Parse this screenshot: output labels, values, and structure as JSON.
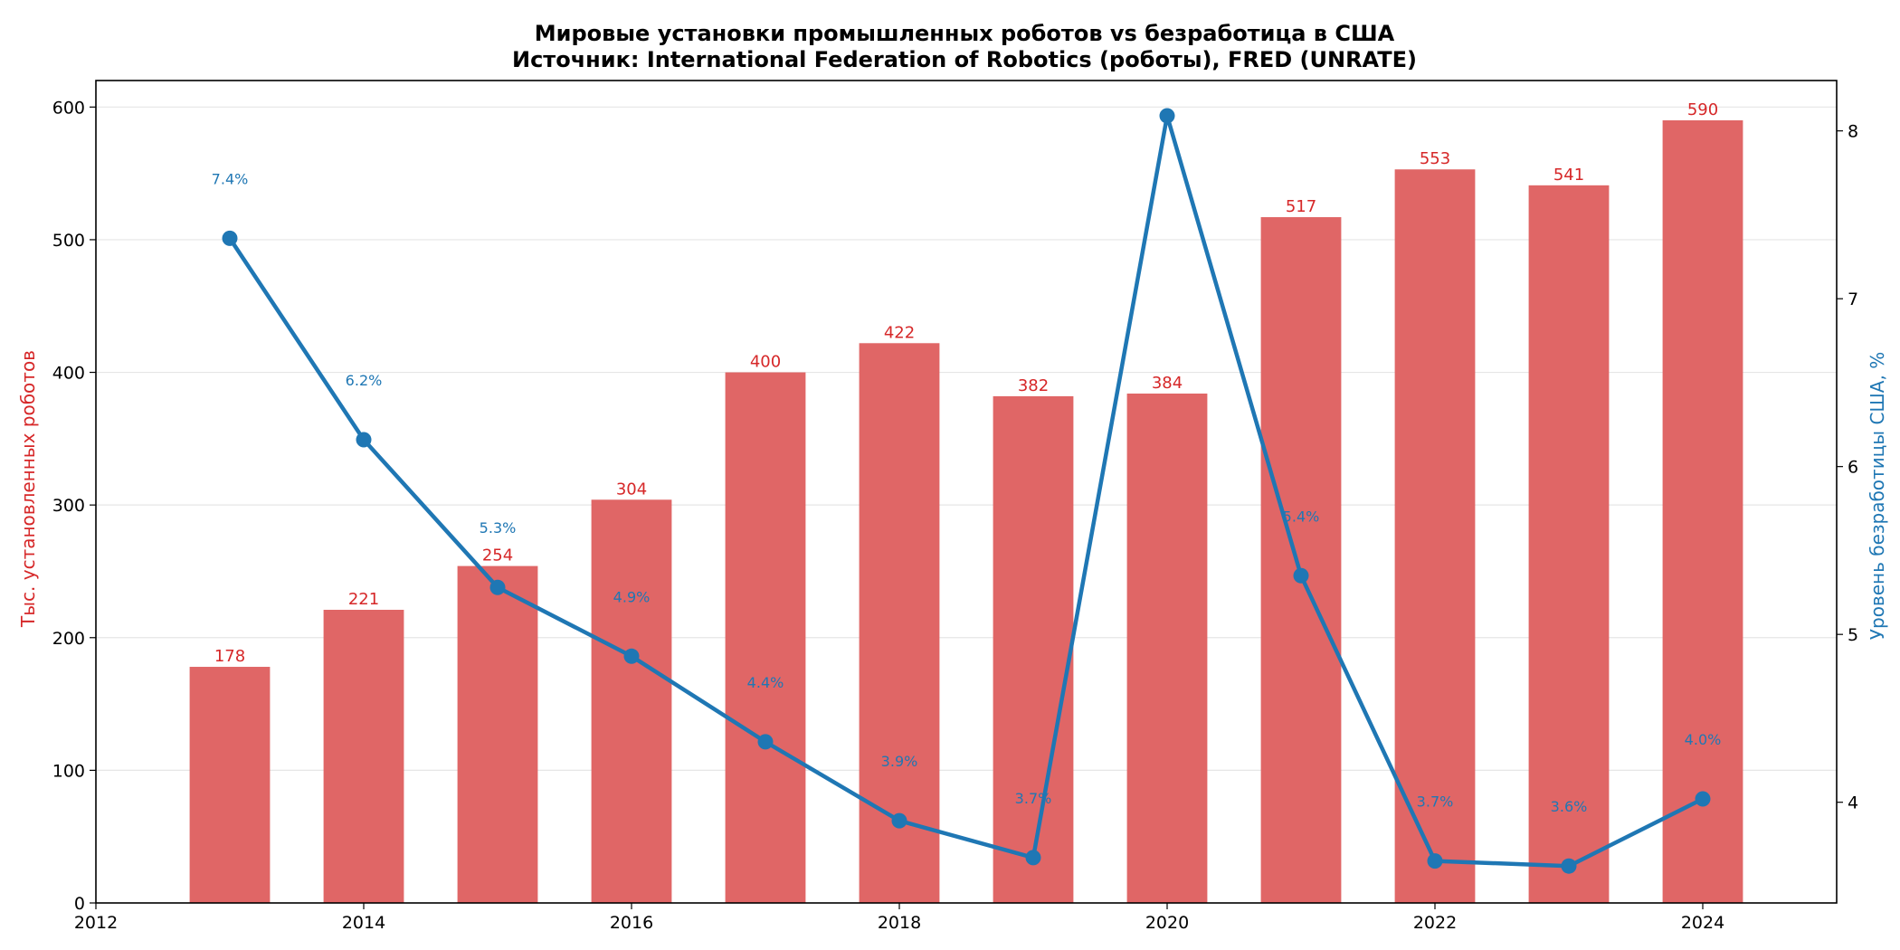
{
  "chart_data": {
    "type": "bar",
    "title": "Мировые установки промышленных роботов vs безработица в США",
    "subtitle": "Источник: International Federation of Robotics (роботы), FRED (UNRATE)",
    "xlabel": "",
    "ylabel_left": "Тыс. установленных роботов",
    "ylabel_right": "Уровень безработицы США, %",
    "x_ticks": [
      "2012",
      "2014",
      "2016",
      "2018",
      "2020",
      "2022",
      "2024"
    ],
    "xlim": [
      2012,
      2025
    ],
    "ylim_left": [
      0,
      620
    ],
    "ylim_right": [
      3.4,
      8.3
    ],
    "y_ticks_left": [
      "0",
      "100",
      "200",
      "300",
      "400",
      "500",
      "600"
    ],
    "y_ticks_right": [
      "4",
      "5",
      "6",
      "7",
      "8"
    ],
    "grid": "horizontal",
    "legend": "none",
    "categories": [
      2013,
      2014,
      2015,
      2016,
      2017,
      2018,
      2019,
      2020,
      2021,
      2022,
      2023,
      2024
    ],
    "series": [
      {
        "type": "bar",
        "axis": "left",
        "color": "#e06666",
        "values": [
          178,
          221,
          254,
          304,
          400,
          422,
          382,
          384,
          517,
          553,
          541,
          590
        ],
        "labels": [
          "178",
          "221",
          "254",
          "304",
          "400",
          "422",
          "382",
          "384",
          "517",
          "553",
          "541",
          "590"
        ]
      },
      {
        "type": "line",
        "axis": "right",
        "color": "#1f77b4",
        "values": [
          7.36,
          6.16,
          5.28,
          4.87,
          4.36,
          3.89,
          3.67,
          8.09,
          5.35,
          3.65,
          3.62,
          4.02
        ],
        "labels": [
          "7.4%",
          "6.2%",
          "5.3%",
          "4.9%",
          "4.4%",
          "3.9%",
          "3.7%",
          "",
          "5.4%",
          "3.7%",
          "3.6%",
          "4.0%"
        ]
      }
    ]
  }
}
